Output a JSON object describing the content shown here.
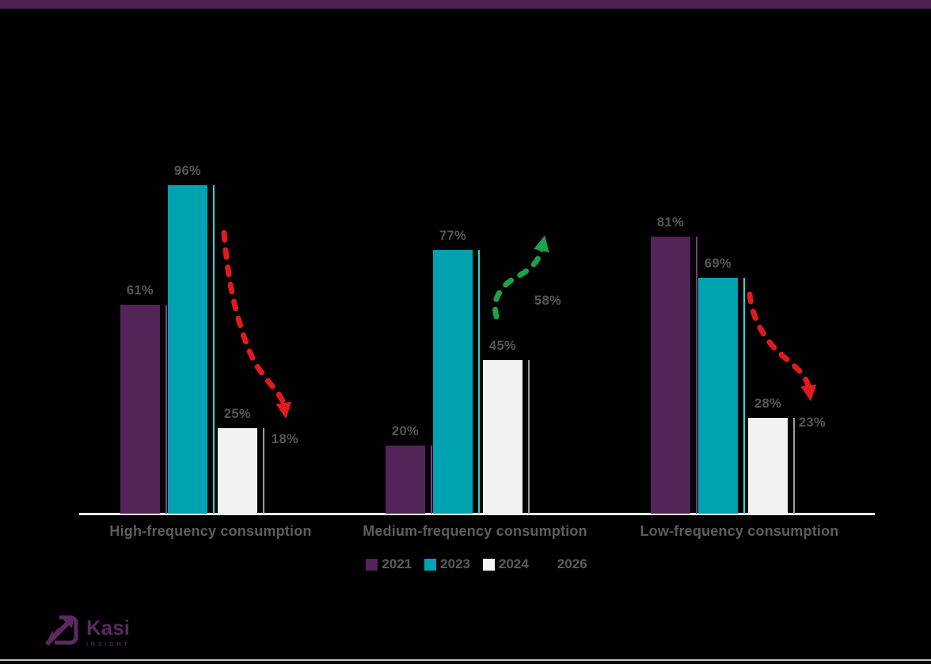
{
  "page": {
    "background_color": "#000000",
    "top_bar_color": "#4e2153"
  },
  "logo": {
    "brand": "Kasi",
    "sub": "INSIGHT",
    "color": "#5c2960"
  },
  "legend": [
    {
      "label": "2021",
      "color": "#522457"
    },
    {
      "label": "2023",
      "color": "#00a2b0"
    },
    {
      "label": "2024",
      "color": "#f2f2f2"
    },
    {
      "label": "2026",
      "color": "#000000"
    }
  ],
  "chart_data": {
    "type": "bar",
    "categories": [
      "High-frequency consumption",
      "Medium-frequency consumption",
      "Low-frequency consumption"
    ],
    "series": [
      {
        "name": "2021",
        "color": "#522457",
        "values": [
          61,
          20,
          81
        ]
      },
      {
        "name": "2023",
        "color": "#00a2b0",
        "values": [
          96,
          77,
          69
        ]
      },
      {
        "name": "2024",
        "color": "#f2f2f2",
        "values": [
          25,
          45,
          28
        ]
      }
    ],
    "projections_2026": [
      {
        "category": "High-frequency consumption",
        "value": 18,
        "trend": "down",
        "arrow_color": "#e01b1e"
      },
      {
        "category": "Medium-frequency consumption",
        "value": 58,
        "trend": "up",
        "arrow_color": "#1ba24b"
      },
      {
        "category": "Low-frequency consumption",
        "value": 23,
        "trend": "down",
        "arrow_color": "#e01b1e"
      }
    ],
    "value_suffix": "%",
    "ylim": [
      0,
      100
    ],
    "grid": false,
    "legend_position": "bottom"
  }
}
